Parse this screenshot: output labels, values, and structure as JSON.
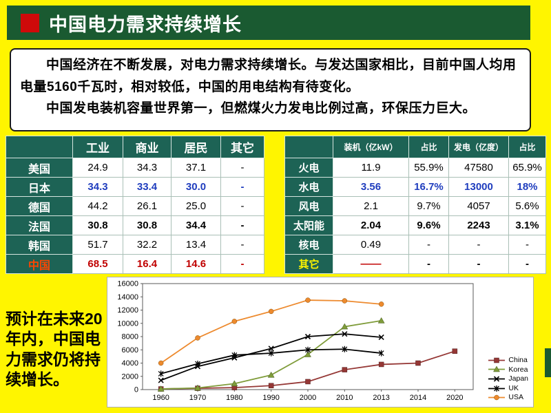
{
  "slide": {
    "title": "中国电力需求持续增长",
    "intro": {
      "p1": "中国经济在不断发展，对电力需求持续增长。与发达国家相比，目前中国人均用电量5160千瓦时，相对较低，中国的用电结构有待变化。",
      "p2": "中国发电装机容量世界第一，但燃煤火力发电比例过高，环保压力巨大。"
    },
    "side_note": "预计在未来20年内，中国电力需求仍将持续增长。"
  },
  "left_table": {
    "headers": [
      "工业",
      "商业",
      "居民",
      "其它"
    ],
    "rows": [
      {
        "label": "美国",
        "values": [
          "24.9",
          "34.3",
          "37.1",
          "-"
        ],
        "style": "normal"
      },
      {
        "label": "日本",
        "values": [
          "34.3",
          "33.4",
          "30.0",
          "-"
        ],
        "style": "blue"
      },
      {
        "label": "德国",
        "values": [
          "44.2",
          "26.1",
          "25.0",
          "-"
        ],
        "style": "normal"
      },
      {
        "label": "法国",
        "values": [
          "30.8",
          "30.8",
          "34.4",
          "-"
        ],
        "style": "bold"
      },
      {
        "label": "韩国",
        "values": [
          "51.7",
          "32.2",
          "13.4",
          "-"
        ],
        "style": "normal"
      },
      {
        "label": "中国",
        "label_color": "red",
        "values": [
          "68.5",
          "16.4",
          "14.6",
          "-"
        ],
        "style": "red"
      }
    ]
  },
  "right_table": {
    "headers": [
      "装机（亿kW）",
      "占比",
      "发电（亿度）",
      "占比"
    ],
    "rows": [
      {
        "label": "火电",
        "values": [
          "11.9",
          "55.9%",
          "47580",
          "65.9%"
        ],
        "style": "normal"
      },
      {
        "label": "水电",
        "values": [
          "3.56",
          "16.7%",
          "13000",
          "18%"
        ],
        "style": "blue"
      },
      {
        "label": "风电",
        "values": [
          "2.1",
          "9.7%",
          "4057",
          "5.6%"
        ],
        "style": "normal"
      },
      {
        "label": "太阳能",
        "values": [
          "2.04",
          "9.6%",
          "2243",
          "3.1%"
        ],
        "style": "bold"
      },
      {
        "label": "核电",
        "values": [
          "0.49",
          "-",
          "-",
          "-"
        ],
        "style": "normal"
      },
      {
        "label": "其它",
        "label_color": "yellow",
        "values": [
          "——",
          "-",
          "-",
          "-"
        ],
        "style": "bold",
        "value_styles": [
          "red",
          "bold",
          "bold",
          "bold"
        ]
      }
    ]
  },
  "chart_data": {
    "type": "line",
    "x": [
      "1960",
      "1970",
      "1980",
      "1990",
      "2000",
      "2010",
      "2013",
      "2014",
      "2020"
    ],
    "title": "",
    "xlabel": "",
    "ylabel": "",
    "ylim": [
      0,
      16000
    ],
    "ytick": 2000,
    "grid": false,
    "legend_position": "right",
    "series": [
      {
        "name": "China",
        "color": "#953735",
        "marker": "square",
        "values": [
          100,
          200,
          300,
          600,
          1200,
          3000,
          3800,
          4000,
          5800
        ]
      },
      {
        "name": "Korea",
        "color": "#7F9C3A",
        "marker": "triangle",
        "values": [
          100,
          250,
          900,
          2200,
          5300,
          9500,
          10400,
          null,
          null
        ]
      },
      {
        "name": "Japan",
        "color": "#000000",
        "marker": "x",
        "values": [
          1400,
          3500,
          4800,
          6200,
          8000,
          8400,
          7900,
          null,
          null
        ]
      },
      {
        "name": "UK",
        "color": "#000000",
        "marker": "star",
        "values": [
          2400,
          3900,
          5200,
          5500,
          6000,
          6100,
          5500,
          null,
          null
        ]
      },
      {
        "name": "USA",
        "color": "#ED8A2E",
        "marker": "circle",
        "values": [
          4000,
          7800,
          10300,
          11800,
          13500,
          13400,
          12900,
          null,
          null
        ]
      }
    ]
  }
}
